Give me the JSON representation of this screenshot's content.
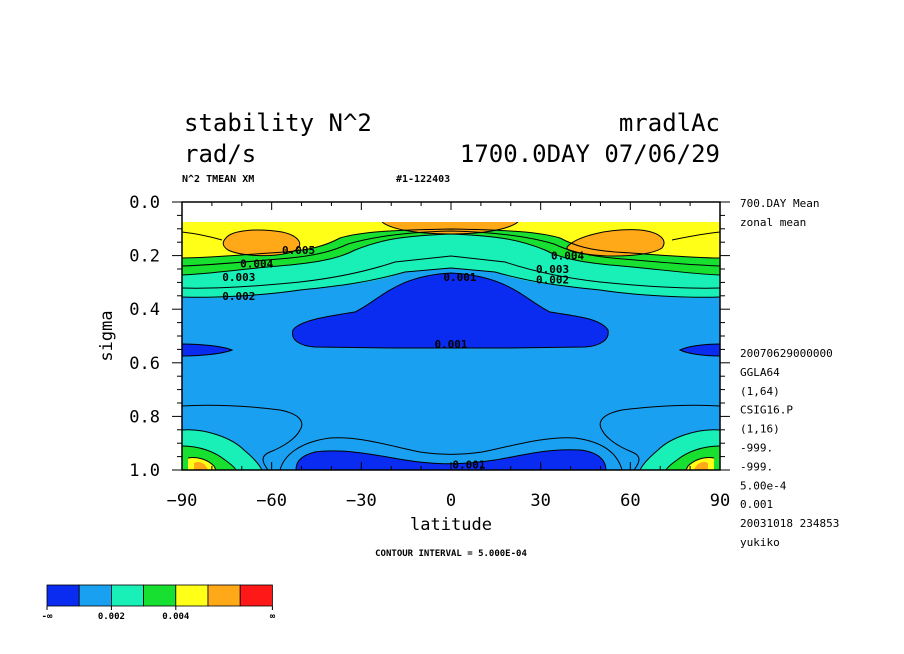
{
  "header": {
    "title_left": "stability N^2",
    "title_right": "mradlAc",
    "units": "rad/s",
    "time_label": "1700.0DAY 07/06/29",
    "sub_left": "N^2 TMEAN XM",
    "sub_right": "#1-122403"
  },
  "right_info": {
    "mean_line": "700.DAY Mean",
    "zonal_line": "zonal mean",
    "lines": [
      "20070629000000",
      "GGLA64",
      "(1,64)",
      "CSIG16.P",
      "(1,16)",
      "-999.",
      "-999.",
      "5.00e-4",
      "0.001",
      "20031018 234853",
      "yukiko"
    ]
  },
  "contour_interval_label": "CONTOUR INTERVAL = 5.000E-04",
  "legend": {
    "tick_labels": [
      "-∞",
      "0.002",
      "0.004",
      "∞"
    ],
    "colors": [
      "#0a2cf0",
      "#1aa0f0",
      "#18f0b8",
      "#18e030",
      "#ffff18",
      "#ffa818",
      "#ff1818"
    ]
  },
  "chart_data": {
    "type": "contour",
    "title": "stability N^2",
    "xlabel": "latitude",
    "ylabel": "sigma",
    "xlim": [
      -90,
      90
    ],
    "ylim": [
      1.0,
      0.0
    ],
    "x_ticks": [
      -90,
      -60,
      -30,
      0,
      30,
      60,
      90
    ],
    "x_tick_labels": [
      "−90",
      "−60",
      "−30",
      "0",
      "30",
      "60",
      "90"
    ],
    "y_ticks": [
      0.0,
      0.2,
      0.4,
      0.6,
      0.8,
      1.0
    ],
    "y_tick_labels": [
      "0.0",
      "0.2",
      "0.4",
      "0.6",
      "0.8",
      "1.0"
    ],
    "contour_interval": 0.0005,
    "levels": [
      0.001,
      0.002,
      0.003,
      0.004,
      0.005,
      0.006
    ],
    "contour_labels": [
      {
        "text": "0.005",
        "lat": -51,
        "sigma": 0.18
      },
      {
        "text": "0.004",
        "lat": -65,
        "sigma": 0.23
      },
      {
        "text": "0.003",
        "lat": -71,
        "sigma": 0.28
      },
      {
        "text": "0.002",
        "lat": -71,
        "sigma": 0.35
      },
      {
        "text": "0.001",
        "lat": 3,
        "sigma": 0.28
      },
      {
        "text": "0.001",
        "lat": 0,
        "sigma": 0.53
      },
      {
        "text": "0.001",
        "lat": 6,
        "sigma": 0.98
      },
      {
        "text": "0.004",
        "lat": 39,
        "sigma": 0.2
      },
      {
        "text": "0.003",
        "lat": 34,
        "sigma": 0.25
      },
      {
        "text": "0.002",
        "lat": 34,
        "sigma": 0.29
      }
    ]
  }
}
